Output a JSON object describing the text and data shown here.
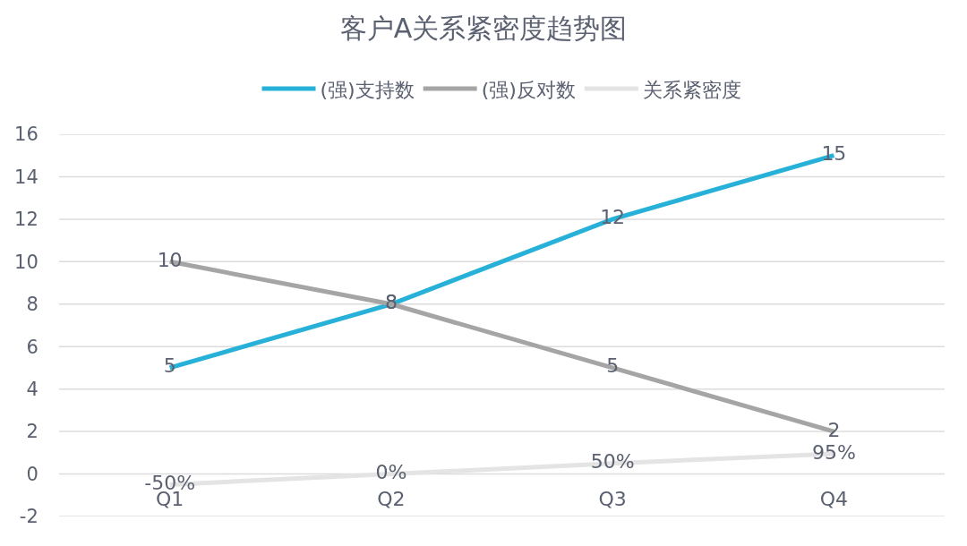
{
  "chart_data": {
    "type": "line",
    "title": "客户A关系紧密度趋势图",
    "categories": [
      "Q1",
      "Q2",
      "Q3",
      "Q4"
    ],
    "series": [
      {
        "name": "(强)支持数",
        "color": "#27b1d8",
        "values": [
          5,
          8,
          12,
          15
        ],
        "value_labels": [
          "5",
          "8",
          "12",
          "15"
        ]
      },
      {
        "name": "(强)反对数",
        "color": "#a5a5a5",
        "values": [
          10,
          8,
          5,
          2
        ],
        "value_labels": [
          "10",
          "8",
          "5",
          "2"
        ]
      },
      {
        "name": "关系紧密度",
        "color": "#e4e4e4",
        "values": [
          -0.5,
          0,
          0.5,
          0.95
        ],
        "value_labels": [
          "-50%",
          "0%",
          "50%",
          "95%"
        ]
      }
    ],
    "ylim": [
      -2,
      16
    ],
    "yticks": [
      -2,
      0,
      2,
      4,
      6,
      8,
      10,
      12,
      14,
      16
    ],
    "grid": "y",
    "legend": "top",
    "marker": "none",
    "line_style": "solid"
  }
}
